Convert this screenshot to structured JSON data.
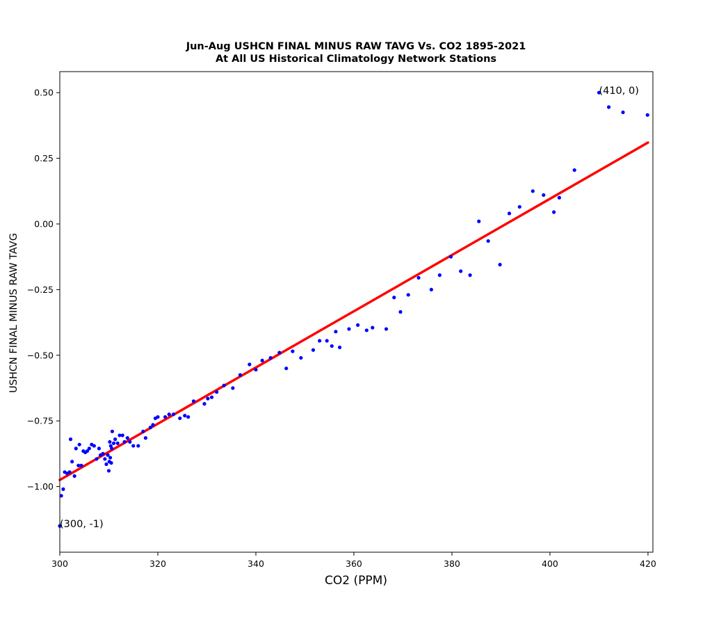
{
  "chart_data": {
    "type": "scatter",
    "title": "Jun-Aug USHCN FINAL MINUS RAW TAVG Vs. CO2 1895-2021",
    "subtitle": "At All US Historical Climatology Network Stations",
    "xlabel": "CO2 (PPM)",
    "ylabel": "USHCN FINAL MINUS RAW TAVG",
    "xlim": [
      300,
      421
    ],
    "ylim": [
      -1.25,
      0.58
    ],
    "x_ticks": [
      300,
      320,
      340,
      360,
      380,
      400,
      420
    ],
    "x_tick_labels": [
      "300",
      "320",
      "340",
      "360",
      "380",
      "400",
      "420"
    ],
    "y_ticks": [
      0.5,
      0.25,
      0.0,
      -0.25,
      -0.5,
      -0.75,
      -1.0
    ],
    "y_tick_labels": [
      "0.50",
      "0.25",
      "0.00",
      "−0.25",
      "−0.50",
      "−0.75",
      "−1.00"
    ],
    "grid": false,
    "point_color": "#0000ff",
    "line_color": "#ff0000",
    "fit_line": {
      "x": [
        300,
        420
      ],
      "y": [
        -0.975,
        0.31
      ]
    },
    "annotations": [
      {
        "label": "(410, 0)",
        "x": 410,
        "y": 0.5
      },
      {
        "label": "(300, -1)",
        "x": 300,
        "y": -1.15
      }
    ],
    "points": [
      [
        300.0,
        -1.15
      ],
      [
        300.3,
        -1.035
      ],
      [
        300.7,
        -1.01
      ],
      [
        301.0,
        -0.945
      ],
      [
        301.5,
        -0.95
      ],
      [
        302.0,
        -0.945
      ],
      [
        302.2,
        -0.82
      ],
      [
        302.5,
        -0.905
      ],
      [
        303.0,
        -0.96
      ],
      [
        303.3,
        -0.855
      ],
      [
        303.8,
        -0.92
      ],
      [
        304.0,
        -0.84
      ],
      [
        304.4,
        -0.92
      ],
      [
        304.8,
        -0.865
      ],
      [
        305.2,
        -0.87
      ],
      [
        305.6,
        -0.865
      ],
      [
        306.0,
        -0.855
      ],
      [
        306.5,
        -0.84
      ],
      [
        307.0,
        -0.845
      ],
      [
        307.5,
        -0.895
      ],
      [
        308.0,
        -0.855
      ],
      [
        308.3,
        -0.88
      ],
      [
        308.8,
        -0.875
      ],
      [
        309.2,
        -0.895
      ],
      [
        309.5,
        -0.915
      ],
      [
        309.8,
        -0.88
      ],
      [
        310.0,
        -0.94
      ],
      [
        310.1,
        -0.905
      ],
      [
        310.2,
        -0.83
      ],
      [
        310.3,
        -0.89
      ],
      [
        310.4,
        -0.845
      ],
      [
        310.5,
        -0.91
      ],
      [
        310.6,
        -0.855
      ],
      [
        310.7,
        -0.79
      ],
      [
        311.0,
        -0.835
      ],
      [
        311.3,
        -0.82
      ],
      [
        311.8,
        -0.835
      ],
      [
        312.2,
        -0.805
      ],
      [
        312.8,
        -0.805
      ],
      [
        313.2,
        -0.83
      ],
      [
        313.8,
        -0.815
      ],
      [
        314.3,
        -0.83
      ],
      [
        315.0,
        -0.845
      ],
      [
        316.0,
        -0.845
      ],
      [
        317.0,
        -0.79
      ],
      [
        317.5,
        -0.815
      ],
      [
        318.5,
        -0.775
      ],
      [
        319.0,
        -0.765
      ],
      [
        319.5,
        -0.74
      ],
      [
        320.0,
        -0.735
      ],
      [
        321.5,
        -0.735
      ],
      [
        322.3,
        -0.725
      ],
      [
        323.2,
        -0.725
      ],
      [
        324.5,
        -0.74
      ],
      [
        325.5,
        -0.73
      ],
      [
        326.2,
        -0.735
      ],
      [
        327.3,
        -0.675
      ],
      [
        329.5,
        -0.685
      ],
      [
        330.2,
        -0.665
      ],
      [
        331.0,
        -0.66
      ],
      [
        332.0,
        -0.64
      ],
      [
        333.5,
        -0.615
      ],
      [
        335.3,
        -0.625
      ],
      [
        336.8,
        -0.575
      ],
      [
        338.7,
        -0.535
      ],
      [
        340.0,
        -0.555
      ],
      [
        341.3,
        -0.52
      ],
      [
        343.0,
        -0.51
      ],
      [
        344.8,
        -0.49
      ],
      [
        346.2,
        -0.55
      ],
      [
        347.5,
        -0.485
      ],
      [
        349.2,
        -0.51
      ],
      [
        351.7,
        -0.48
      ],
      [
        353.0,
        -0.445
      ],
      [
        354.5,
        -0.445
      ],
      [
        355.5,
        -0.465
      ],
      [
        356.3,
        -0.41
      ],
      [
        357.1,
        -0.47
      ],
      [
        359.0,
        -0.4
      ],
      [
        360.8,
        -0.385
      ],
      [
        362.6,
        -0.405
      ],
      [
        363.8,
        -0.395
      ],
      [
        366.6,
        -0.4
      ],
      [
        368.2,
        -0.28
      ],
      [
        369.5,
        -0.335
      ],
      [
        371.1,
        -0.27
      ],
      [
        373.2,
        -0.205
      ],
      [
        375.8,
        -0.25
      ],
      [
        377.5,
        -0.195
      ],
      [
        379.8,
        -0.125
      ],
      [
        381.8,
        -0.18
      ],
      [
        383.7,
        -0.195
      ],
      [
        385.5,
        0.01
      ],
      [
        387.4,
        -0.065
      ],
      [
        389.8,
        -0.155
      ],
      [
        391.7,
        0.04
      ],
      [
        393.8,
        0.065
      ],
      [
        396.5,
        0.125
      ],
      [
        398.7,
        0.11
      ],
      [
        400.8,
        0.045
      ],
      [
        401.9,
        0.1
      ],
      [
        405.0,
        0.205
      ],
      [
        410.0,
        0.5
      ],
      [
        412.0,
        0.445
      ],
      [
        414.9,
        0.425
      ],
      [
        419.9,
        0.415
      ]
    ]
  }
}
